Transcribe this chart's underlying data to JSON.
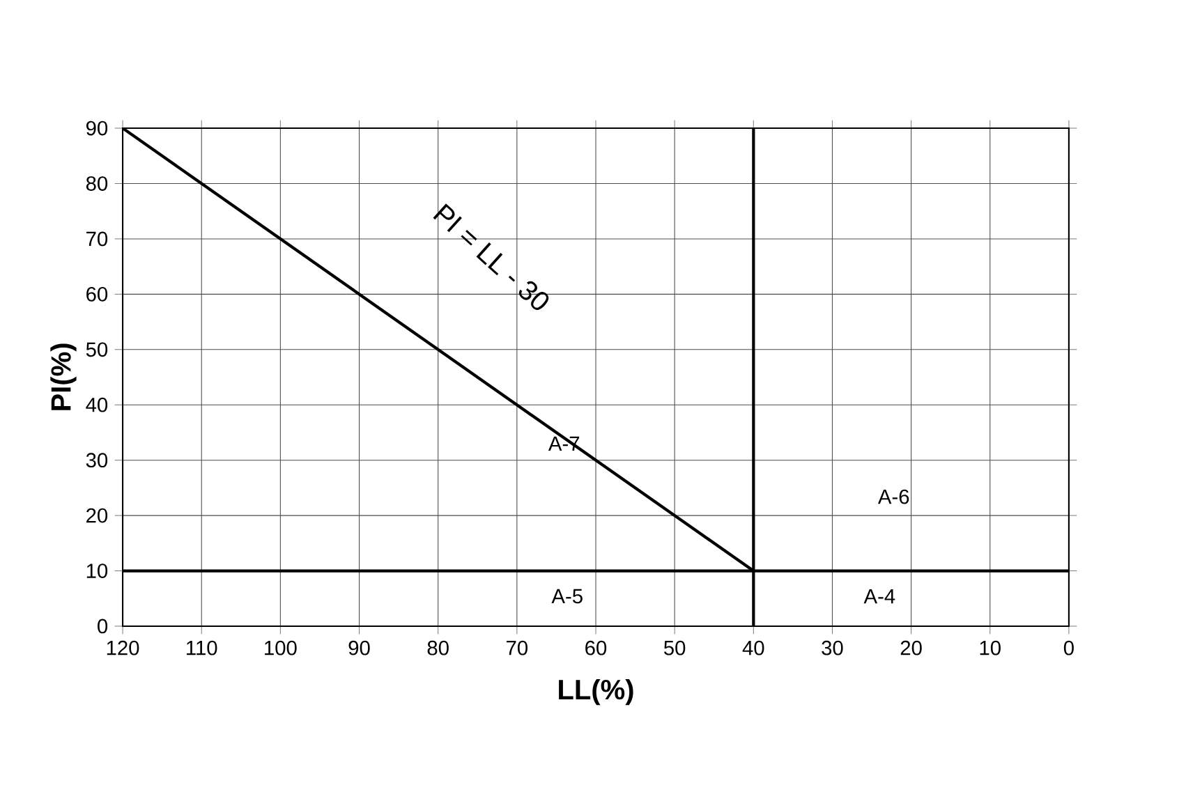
{
  "chart_data": {
    "type": "line",
    "xlabel": "LL(%)",
    "ylabel": "PI(%)",
    "series": [
      {
        "x": [
          120,
          40
        ],
        "values": [
          90,
          10
        ],
        "color": "#000000"
      },
      {
        "x": [
          40,
          40
        ],
        "values": [
          0,
          90
        ],
        "color": "#000000"
      },
      {
        "x": [
          120,
          0
        ],
        "values": [
          10,
          10
        ],
        "color": "#000000"
      }
    ],
    "xlim": [
      120,
      0
    ],
    "xticks": [
      120,
      110,
      100,
      90,
      80,
      70,
      60,
      50,
      40,
      30,
      20,
      10,
      0
    ],
    "ylim": [
      0,
      90
    ],
    "yticks": [
      0,
      10,
      20,
      30,
      40,
      50,
      60,
      70,
      80,
      90
    ],
    "grid": true,
    "marker": "none",
    "line_style": "solid",
    "annotations": [
      "PI = LL - 30",
      {
        "text": "A-7",
        "x": 64,
        "y": 33
      },
      "A-6",
      "A-5",
      "A-4"
    ]
  }
}
